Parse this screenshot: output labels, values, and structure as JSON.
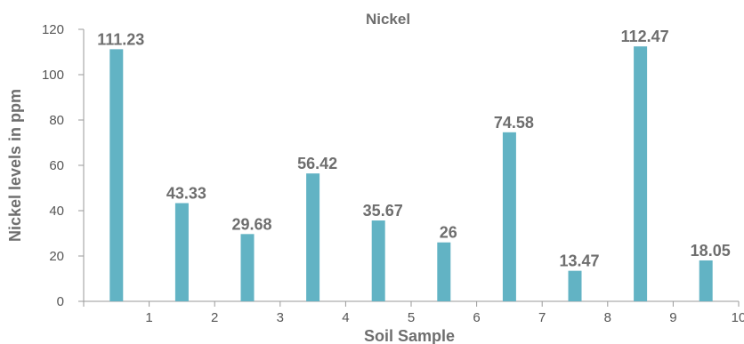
{
  "chart_data": {
    "type": "bar",
    "title": "Nickel",
    "xlabel": "Soil Sample",
    "ylabel": "Nickel levels in ppm",
    "categories": [
      "1",
      "2",
      "3",
      "4",
      "5",
      "6",
      "7",
      "8",
      "9",
      "10"
    ],
    "values": [
      111.23,
      43.33,
      29.68,
      56.42,
      35.67,
      26,
      74.58,
      13.47,
      112.47,
      18.05
    ],
    "data_labels": [
      "111.23",
      "43.33",
      "29.68",
      "56.42",
      "35.67",
      "26",
      "74.58",
      "13.47",
      "112.47",
      "18.05"
    ],
    "x_ticks": [
      "1",
      "2",
      "3",
      "4",
      "5",
      "6",
      "7",
      "8",
      "9",
      "10"
    ],
    "y_ticks": [
      0,
      20,
      40,
      60,
      80,
      100,
      120
    ],
    "ylim": [
      0,
      120
    ],
    "grid": false,
    "legend": "none",
    "bar_color": "#62b3c4",
    "axis_color": "#9a9a9a",
    "text_color": "#6e6e6e"
  }
}
